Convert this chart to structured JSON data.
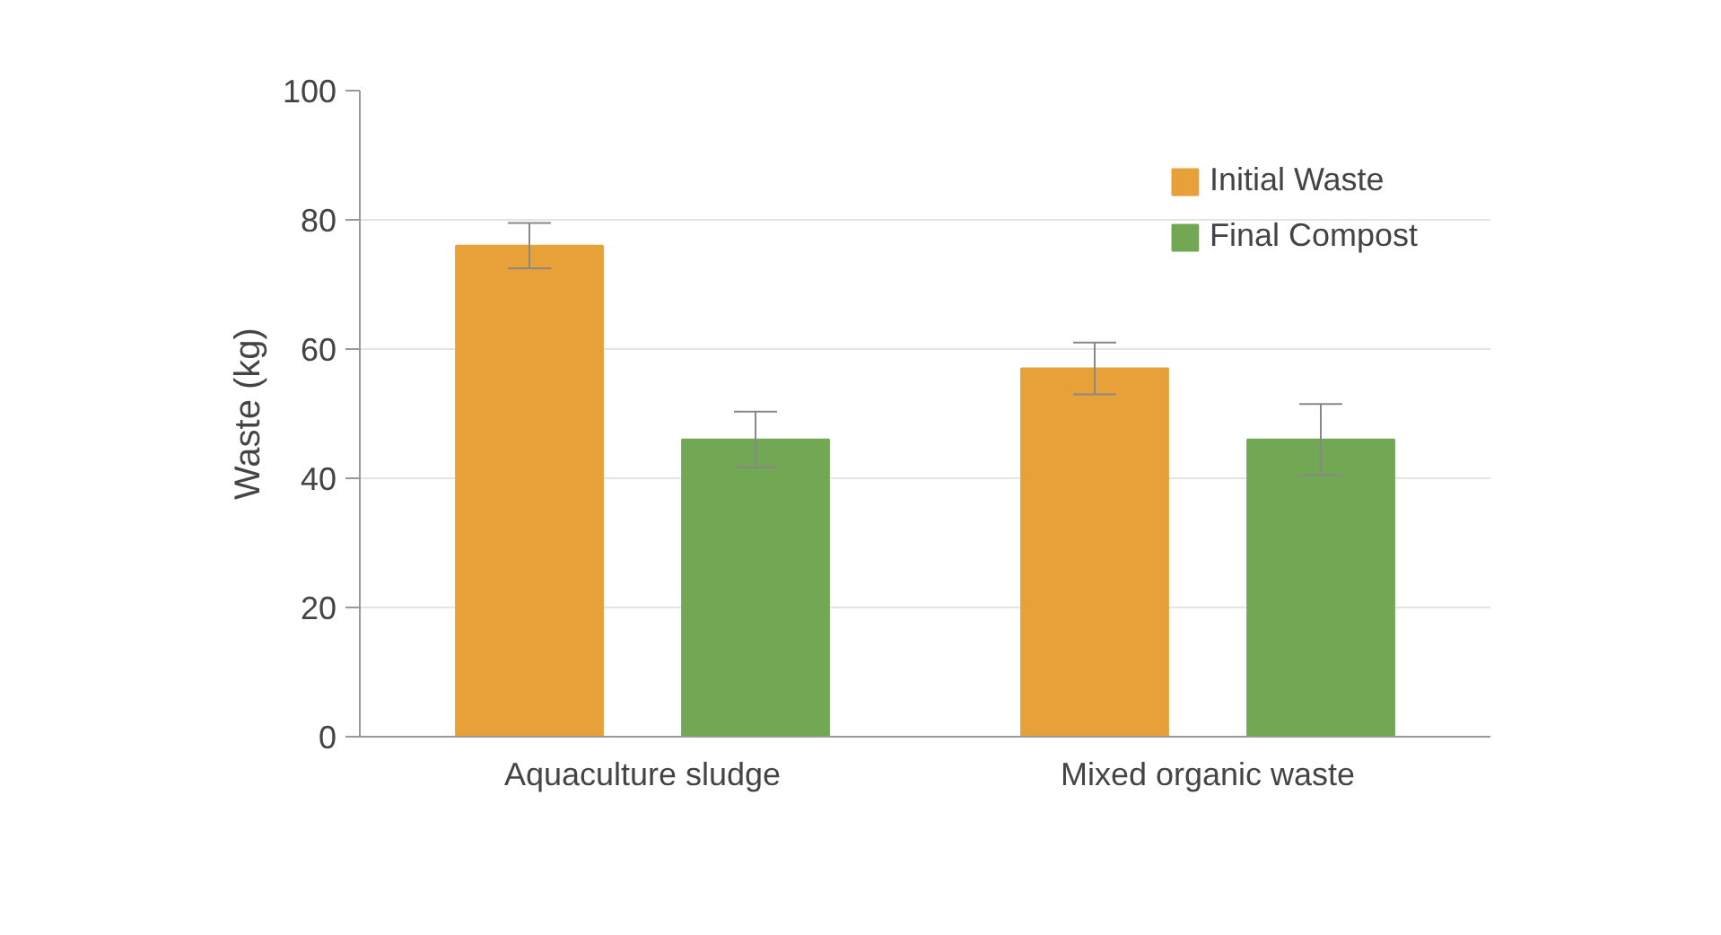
{
  "chart_data": {
    "type": "bar",
    "ylabel": "Waste (kg)",
    "categories": [
      "Aquaculture sludge",
      "Mixed organic waste"
    ],
    "series": [
      {
        "name": "Initial Waste",
        "color": "#e8a038",
        "values": [
          76,
          57
        ],
        "errors": [
          3.5,
          4
        ]
      },
      {
        "name": "Final Compost",
        "color": "#72a854",
        "values": [
          46,
          46
        ],
        "errors": [
          4.3,
          5.5
        ]
      }
    ],
    "ylim": [
      0,
      100
    ],
    "yticks": [
      0,
      20,
      40,
      60,
      80,
      100
    ],
    "grid": "y",
    "legend": "top right"
  }
}
